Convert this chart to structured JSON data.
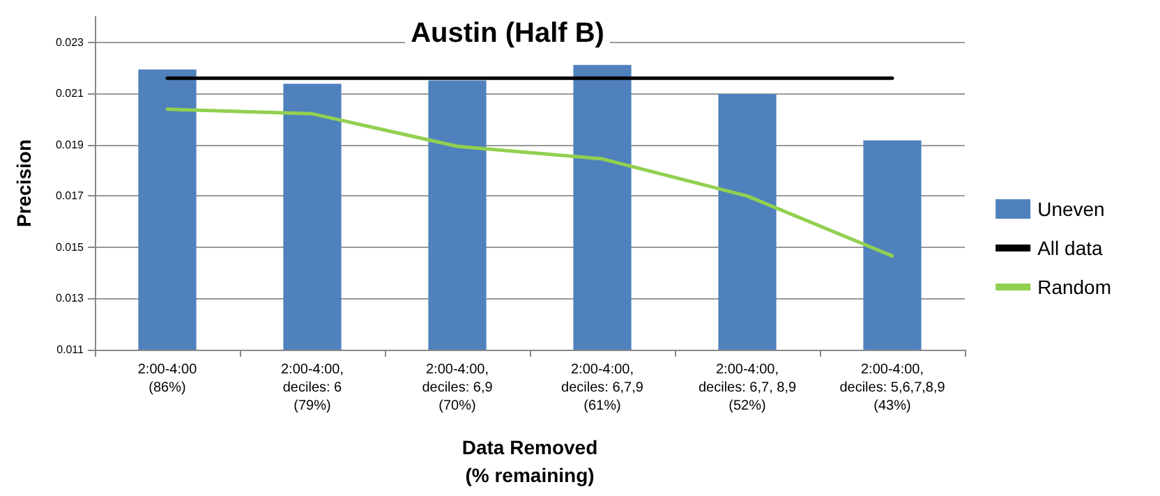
{
  "chart_data": {
    "type": "bar",
    "title": "Austin (Half B)",
    "xlabel": "Data Removed\n(% remaining)",
    "ylabel": "Precision",
    "categories": [
      "2:00-4:00\n(86%)",
      "2:00-4:00,\ndeciles: 6\n(79%)",
      "2:00-4:00,\ndeciles: 6,9\n(70%)",
      "2:00-4:00,\ndeciles: 6,7,9\n(61%)",
      "2:00-4:00,\ndeciles: 6,7, 8,9\n(52%)",
      "2:00-4:00,\ndeciles: 5,6,7,8,9\n(43%)"
    ],
    "series": [
      {
        "name": "Uneven",
        "color": "#4f81bd",
        "values": [
          0.02194,
          0.02138,
          0.02151,
          0.02212,
          0.02098,
          0.01917
        ]
      },
      {
        "name": "All data",
        "type": "line",
        "color": "#000000",
        "values": [
          0.0216,
          0.0216,
          0.0216,
          0.0216,
          0.0216,
          0.0216
        ]
      },
      {
        "name": "Random",
        "type": "line",
        "color": "#92d050",
        "values": [
          0.02039,
          0.02021,
          0.01894,
          0.01845,
          0.017,
          0.01466
        ]
      }
    ],
    "ylim": [
      0.011,
      0.024
    ],
    "yticks": [
      0.011,
      0.013,
      0.015,
      0.017,
      0.019,
      0.021,
      0.023
    ],
    "grid": "y",
    "legend": "right",
    "marker": "none"
  }
}
